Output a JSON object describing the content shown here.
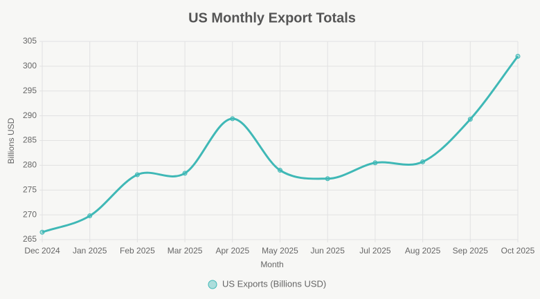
{
  "chart_data": {
    "type": "line",
    "title": "US Monthly Export Totals",
    "x_label": "Month",
    "y_label": "Billions USD",
    "categories": [
      "Dec 2024",
      "Jan 2025",
      "Feb 2025",
      "Mar 2025",
      "Apr 2025",
      "May 2025",
      "Jun 2025",
      "Jul 2025",
      "Aug 2025",
      "Sep 2025",
      "Oct 2025"
    ],
    "series": [
      {
        "name": "US Exports (Billions USD)",
        "color": "#3fb8b6",
        "values": [
          266.5,
          269.8,
          278.1,
          278.4,
          289.4,
          279.0,
          277.3,
          280.5,
          280.7,
          289.3,
          302.0
        ]
      }
    ],
    "ylim": [
      265,
      305
    ],
    "yticks": [
      265,
      270,
      275,
      280,
      285,
      290,
      295,
      300,
      305
    ],
    "grid": true,
    "legend": "bottom"
  }
}
